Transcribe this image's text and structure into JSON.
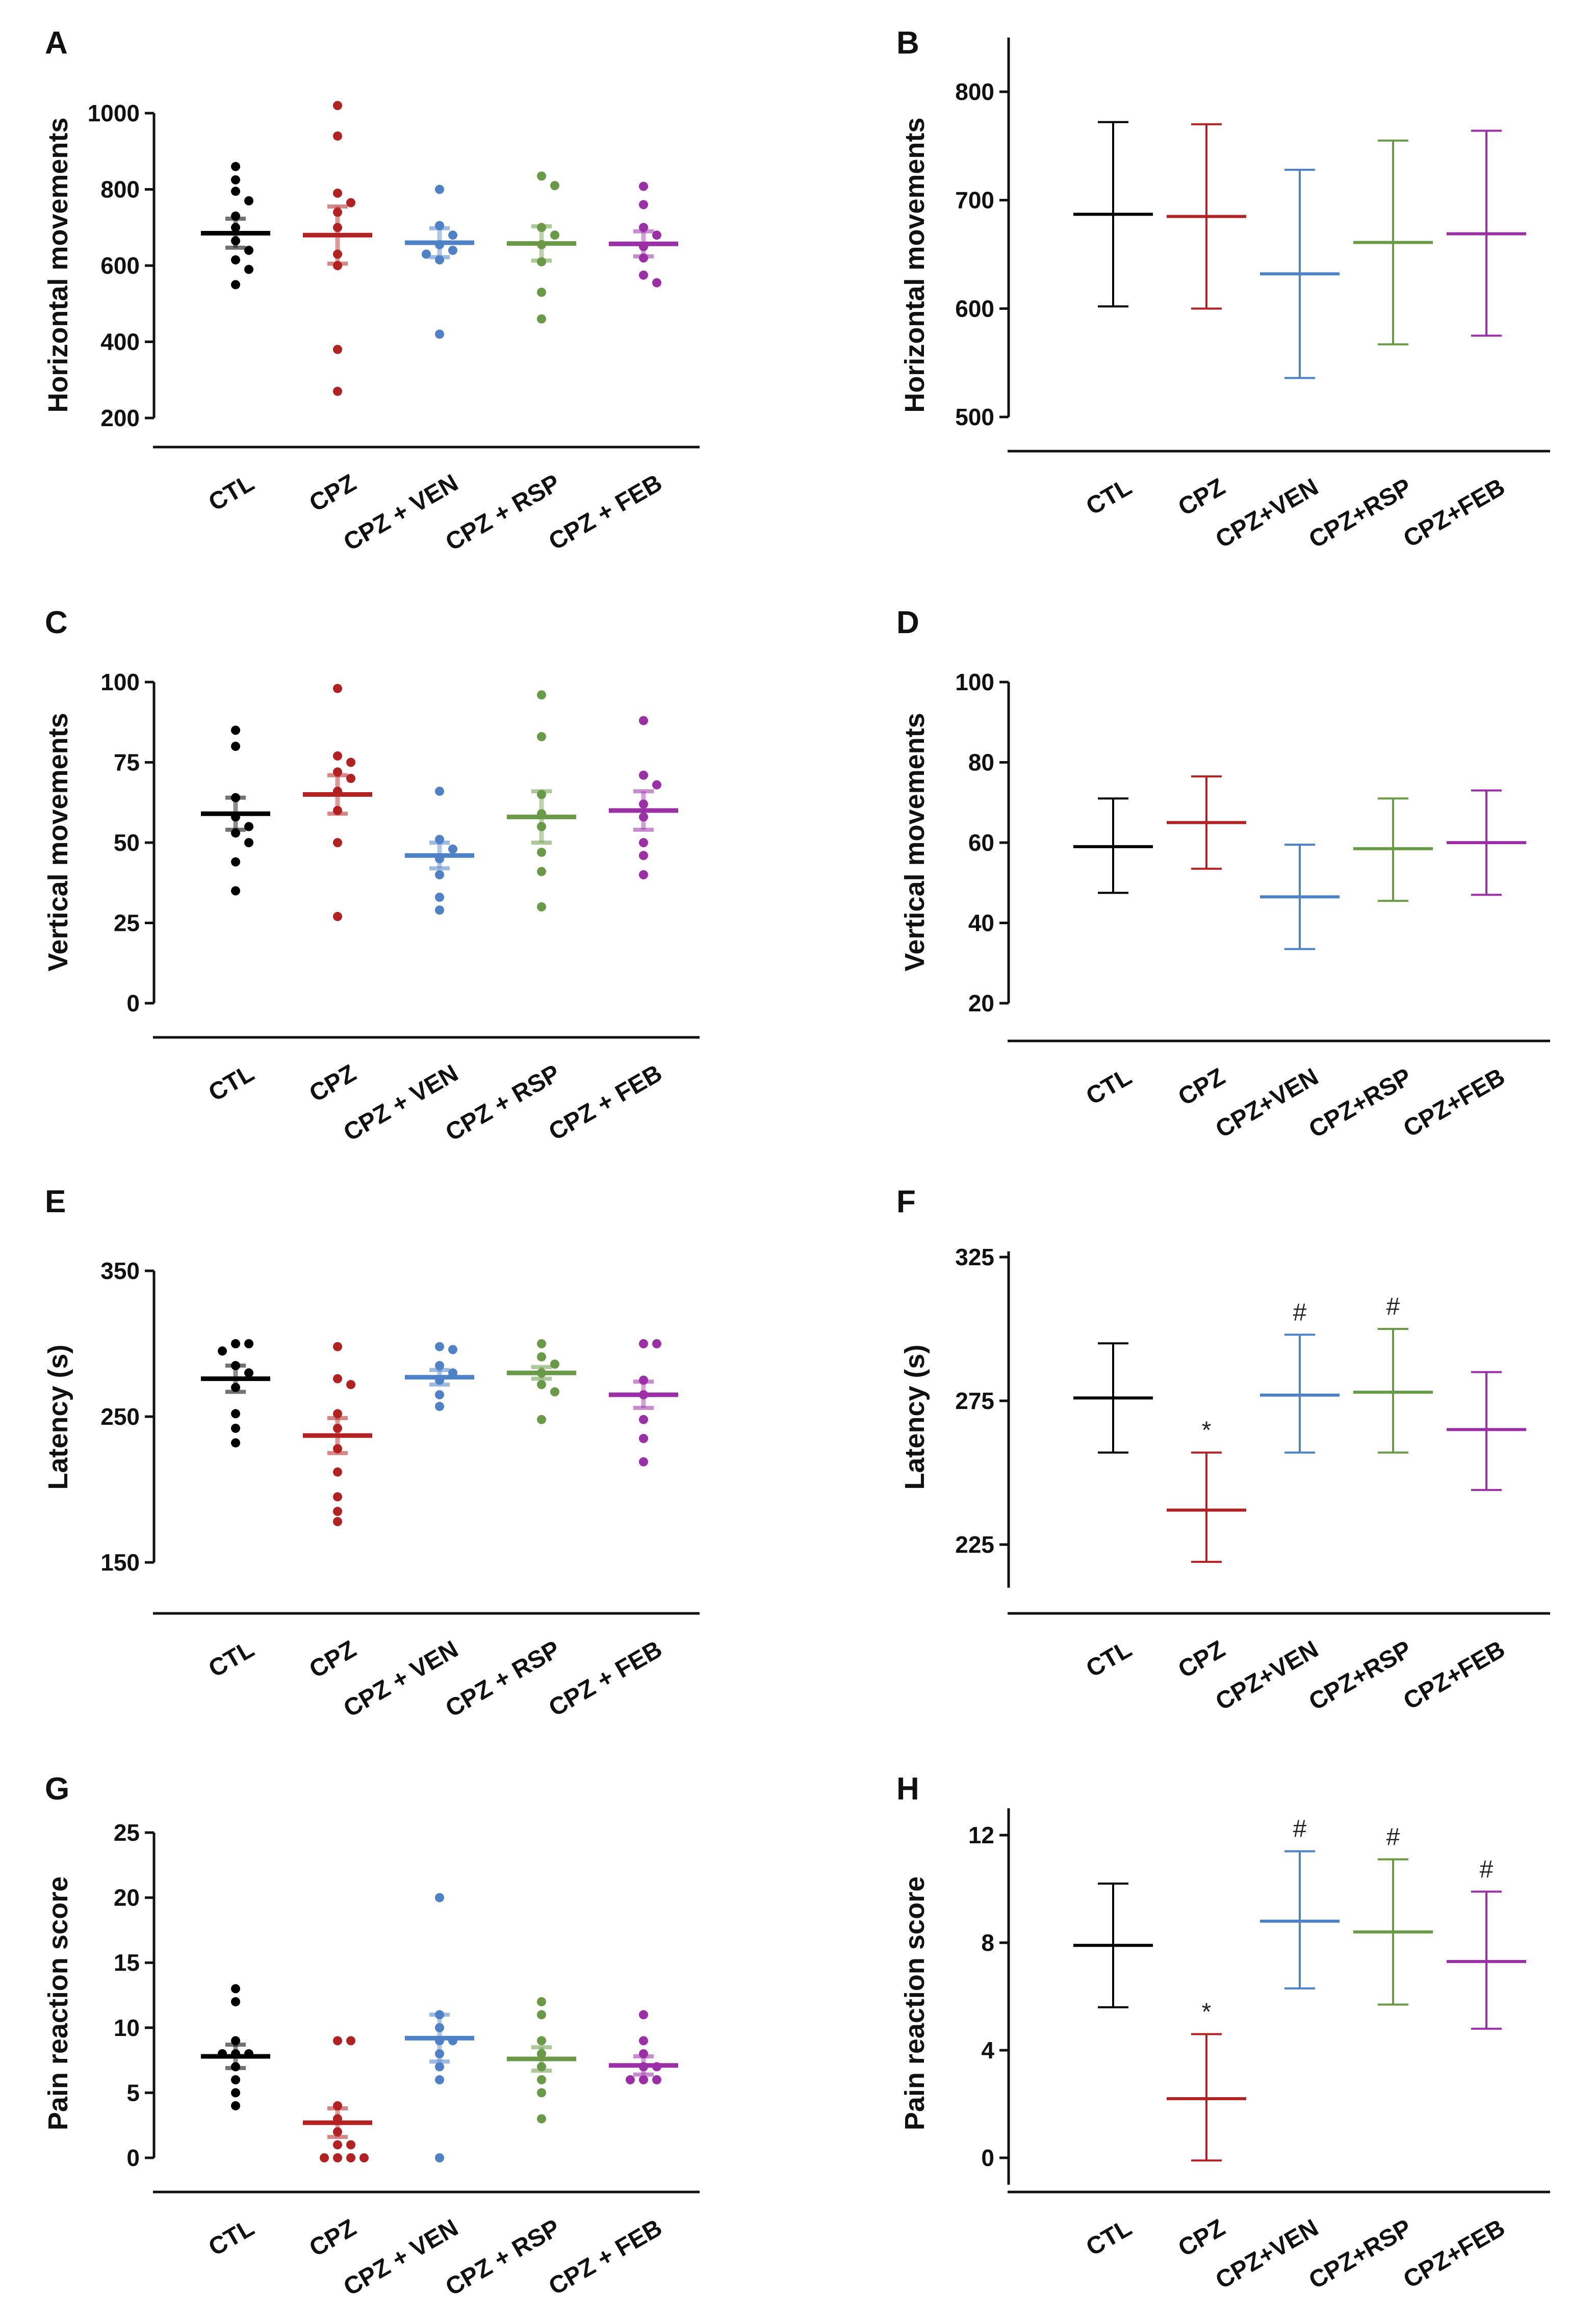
{
  "chart_data": [
    {
      "panel": "A",
      "type": "scatter",
      "style": "dot",
      "ylabel": "Horizontal movements",
      "ylim": [
        200,
        1000
      ],
      "ticks": [
        200,
        400,
        600,
        800,
        1000
      ],
      "categories": [
        "CTL",
        "CPZ",
        "CPZ + VEN",
        "CPZ + RSP",
        "CPZ + FEB"
      ],
      "colors": [
        "#000000",
        "#b22222",
        "#4f81c7",
        "#6a9a48",
        "#9b30a6"
      ],
      "series": [
        {
          "name": "CTL",
          "mean": 685,
          "sem": 38,
          "points": [
            860,
            825,
            795,
            770,
            730,
            700,
            665,
            640,
            615,
            590,
            550
          ]
        },
        {
          "name": "CPZ",
          "mean": 680,
          "sem": 75,
          "points": [
            1020,
            940,
            790,
            765,
            740,
            700,
            630,
            600,
            380,
            270
          ]
        },
        {
          "name": "CPZ + VEN",
          "mean": 660,
          "sem": 38,
          "points": [
            800,
            705,
            680,
            655,
            640,
            630,
            615,
            420
          ]
        },
        {
          "name": "CPZ + RSP",
          "mean": 658,
          "sem": 45,
          "points": [
            835,
            810,
            700,
            680,
            655,
            610,
            530,
            460
          ]
        },
        {
          "name": "CPZ + FEB",
          "mean": 657,
          "sem": 33,
          "points": [
            808,
            760,
            700,
            680,
            650,
            620,
            575,
            555
          ]
        }
      ]
    },
    {
      "panel": "B",
      "type": "errorbar",
      "style": "bar",
      "ylabel": "Horizontal movements",
      "ylim": [
        500,
        850
      ],
      "ticks": [
        500,
        600,
        700,
        800
      ],
      "categories": [
        "CTL",
        "CPZ",
        "CPZ+VEN",
        "CPZ+RSP",
        "CPZ+FEB"
      ],
      "colors": [
        "#000000",
        "#b22222",
        "#4f81c7",
        "#6a9a48",
        "#9b30a6"
      ],
      "series": [
        {
          "name": "CTL",
          "mean": 687,
          "low": 602,
          "high": 772
        },
        {
          "name": "CPZ",
          "mean": 685,
          "low": 600,
          "high": 770
        },
        {
          "name": "CPZ+VEN",
          "mean": 632,
          "low": 536,
          "high": 728
        },
        {
          "name": "CPZ+RSP",
          "mean": 661,
          "low": 567,
          "high": 755
        },
        {
          "name": "CPZ+FEB",
          "mean": 669,
          "low": 575,
          "high": 764
        }
      ]
    },
    {
      "panel": "C",
      "type": "scatter",
      "style": "dot",
      "ylabel": "Vertical movements",
      "ylim": [
        0,
        100
      ],
      "ticks": [
        0,
        25,
        50,
        75,
        100
      ],
      "categories": [
        "CTL",
        "CPZ",
        "CPZ + VEN",
        "CPZ + RSP",
        "CPZ + FEB"
      ],
      "colors": [
        "#000000",
        "#b22222",
        "#4f81c7",
        "#6a9a48",
        "#9b30a6"
      ],
      "series": [
        {
          "name": "CTL",
          "mean": 59,
          "sem": 5,
          "points": [
            85,
            80,
            64,
            58,
            55,
            53,
            50,
            44,
            35
          ]
        },
        {
          "name": "CPZ",
          "mean": 65,
          "sem": 6,
          "points": [
            98,
            77,
            75,
            72,
            70,
            66,
            60,
            50,
            27
          ]
        },
        {
          "name": "CPZ + VEN",
          "mean": 46,
          "sem": 4,
          "points": [
            66,
            51,
            48,
            45,
            40,
            33,
            29
          ]
        },
        {
          "name": "CPZ + RSP",
          "mean": 58,
          "sem": 8,
          "points": [
            96,
            83,
            65,
            59,
            55,
            47,
            41,
            30
          ]
        },
        {
          "name": "CPZ + FEB",
          "mean": 60,
          "sem": 6,
          "points": [
            88,
            71,
            68,
            62,
            58,
            50,
            46,
            40
          ]
        }
      ]
    },
    {
      "panel": "D",
      "type": "errorbar",
      "style": "bar",
      "ylabel": "Vertical movements",
      "ylim": [
        20,
        100
      ],
      "ticks": [
        20,
        40,
        60,
        80,
        100
      ],
      "categories": [
        "CTL",
        "CPZ",
        "CPZ+VEN",
        "CPZ+RSP",
        "CPZ+FEB"
      ],
      "colors": [
        "#000000",
        "#b22222",
        "#4f81c7",
        "#6a9a48",
        "#9b30a6"
      ],
      "series": [
        {
          "name": "CTL",
          "mean": 59,
          "low": 47.5,
          "high": 71
        },
        {
          "name": "CPZ",
          "mean": 65,
          "low": 53.5,
          "high": 76.5
        },
        {
          "name": "CPZ+VEN",
          "mean": 46.5,
          "low": 33.5,
          "high": 59.5
        },
        {
          "name": "CPZ+RSP",
          "mean": 58.5,
          "low": 45.5,
          "high": 71
        },
        {
          "name": "CPZ+FEB",
          "mean": 60,
          "low": 47,
          "high": 73
        }
      ]
    },
    {
      "panel": "E",
      "type": "scatter",
      "style": "dot",
      "ylabel": "Latency (s)",
      "ylim": [
        150,
        350
      ],
      "ticks": [
        150,
        250,
        350
      ],
      "categories": [
        "CTL",
        "CPZ",
        "CPZ + VEN",
        "CPZ + RSP",
        "CPZ + FEB"
      ],
      "colors": [
        "#000000",
        "#b22222",
        "#4f81c7",
        "#6a9a48",
        "#9b30a6"
      ],
      "series": [
        {
          "name": "CTL",
          "mean": 276,
          "sem": 9,
          "points": [
            300,
            300,
            295,
            285,
            280,
            270,
            252,
            242,
            232
          ]
        },
        {
          "name": "CPZ",
          "mean": 237,
          "sem": 12,
          "points": [
            298,
            276,
            272,
            252,
            242,
            228,
            212,
            195,
            185,
            178
          ]
        },
        {
          "name": "CPZ + VEN",
          "mean": 277,
          "sem": 5,
          "points": [
            298,
            296,
            285,
            280,
            275,
            265,
            257
          ]
        },
        {
          "name": "CPZ + RSP",
          "mean": 280,
          "sem": 4,
          "points": [
            300,
            291,
            286,
            280,
            272,
            267,
            248
          ]
        },
        {
          "name": "CPZ + FEB",
          "mean": 265,
          "sem": 9,
          "points": [
            300,
            300,
            275,
            265,
            248,
            235,
            219
          ]
        }
      ]
    },
    {
      "panel": "F",
      "type": "errorbar",
      "style": "bar",
      "ylabel": "Latency (s)",
      "ylim": [
        210,
        327
      ],
      "ticks": [
        225,
        275,
        325
      ],
      "categories": [
        "CTL",
        "CPZ",
        "CPZ+VEN",
        "CPZ+RSP",
        "CPZ+FEB"
      ],
      "colors": [
        "#000000",
        "#b22222",
        "#4f81c7",
        "#6a9a48",
        "#9b30a6"
      ],
      "series": [
        {
          "name": "CTL",
          "mean": 276,
          "low": 257,
          "high": 295,
          "annotation": ""
        },
        {
          "name": "CPZ",
          "mean": 237,
          "low": 219,
          "high": 257,
          "annotation": "*"
        },
        {
          "name": "CPZ+VEN",
          "mean": 277,
          "low": 257,
          "high": 298,
          "annotation": "#"
        },
        {
          "name": "CPZ+RSP",
          "mean": 278,
          "low": 257,
          "high": 300,
          "annotation": "#"
        },
        {
          "name": "CPZ+FEB",
          "mean": 265,
          "low": 244,
          "high": 285,
          "annotation": ""
        }
      ]
    },
    {
      "panel": "G",
      "type": "scatter",
      "style": "dot",
      "ylabel": "Pain reaction score",
      "ylim": [
        0,
        25
      ],
      "ticks": [
        0,
        5,
        10,
        15,
        20,
        25
      ],
      "categories": [
        "CTL",
        "CPZ",
        "CPZ + VEN",
        "CPZ + RSP",
        "CPZ + FEB"
      ],
      "colors": [
        "#000000",
        "#b22222",
        "#4f81c7",
        "#6a9a48",
        "#9b30a6"
      ],
      "series": [
        {
          "name": "CTL",
          "mean": 7.8,
          "sem": 0.9,
          "points": [
            13,
            12,
            9,
            8,
            8,
            8,
            7,
            6,
            5,
            4
          ]
        },
        {
          "name": "CPZ",
          "mean": 2.7,
          "sem": 1.1,
          "points": [
            9,
            9,
            4,
            3,
            2,
            1,
            1,
            0,
            0,
            0,
            0
          ]
        },
        {
          "name": "CPZ + VEN",
          "mean": 9.2,
          "sem": 1.8,
          "points": [
            20,
            11,
            10,
            9,
            9,
            8,
            7,
            6,
            0
          ]
        },
        {
          "name": "CPZ + RSP",
          "mean": 7.6,
          "sem": 0.9,
          "points": [
            12,
            11,
            9,
            8,
            7,
            6,
            5,
            3
          ]
        },
        {
          "name": "CPZ + FEB",
          "mean": 7.1,
          "sem": 0.7,
          "points": [
            11,
            9,
            8,
            7,
            7,
            6,
            6,
            6
          ]
        }
      ]
    },
    {
      "panel": "H",
      "type": "errorbar",
      "style": "bar",
      "ylabel": "Pain reaction score",
      "ylim": [
        -1,
        13
      ],
      "ticks": [
        0,
        4,
        8,
        12
      ],
      "categories": [
        "CTL",
        "CPZ",
        "CPZ+VEN",
        "CPZ+RSP",
        "CPZ+FEB"
      ],
      "colors": [
        "#000000",
        "#b22222",
        "#4f81c7",
        "#6a9a48",
        "#9b30a6"
      ],
      "series": [
        {
          "name": "CTL",
          "mean": 7.9,
          "low": 5.6,
          "high": 10.2,
          "annotation": ""
        },
        {
          "name": "CPZ",
          "mean": 2.2,
          "low": -0.1,
          "high": 4.6,
          "annotation": "*"
        },
        {
          "name": "CPZ+VEN",
          "mean": 8.8,
          "low": 6.3,
          "high": 11.4,
          "annotation": "#"
        },
        {
          "name": "CPZ+RSP",
          "mean": 8.4,
          "low": 5.7,
          "high": 11.1,
          "annotation": "#"
        },
        {
          "name": "CPZ+FEB",
          "mean": 7.3,
          "low": 4.8,
          "high": 9.9,
          "annotation": "#"
        }
      ]
    }
  ]
}
